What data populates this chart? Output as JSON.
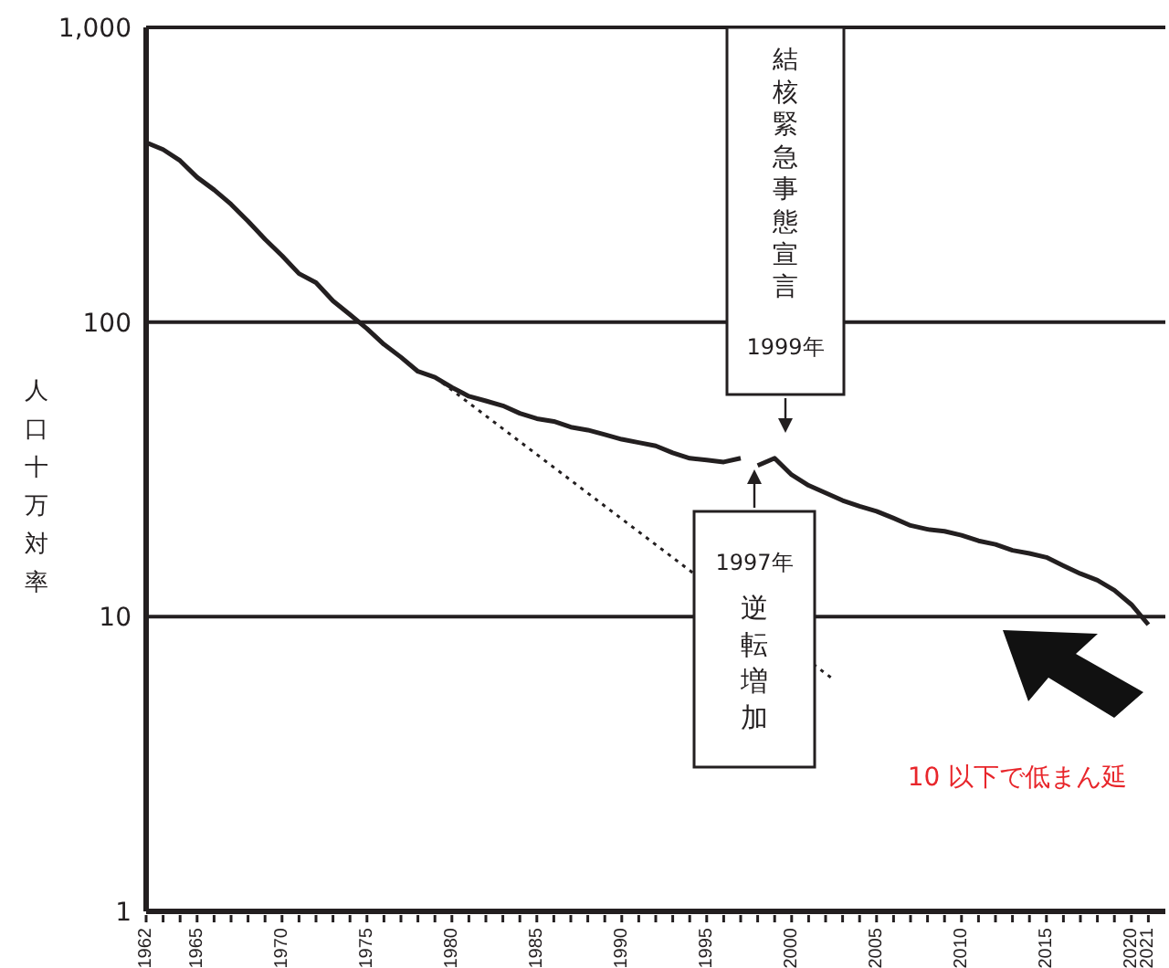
{
  "chart_data": {
    "type": "line",
    "ylabel": "人口十万対率",
    "log": "y",
    "grid": "y",
    "ylim": [
      1,
      1000
    ],
    "yticks": [
      1,
      10,
      100,
      {
        "value": 1000,
        "label": "1,000"
      }
    ],
    "xlim": [
      1962,
      2022
    ],
    "xticks": [
      1962,
      {
        "value": 1963,
        "label": null
      },
      {
        "value": 1964,
        "label": null
      },
      1965,
      {
        "value": 1966,
        "label": null
      },
      {
        "value": 1967,
        "label": null
      },
      {
        "value": 1968,
        "label": null
      },
      {
        "value": 1969,
        "label": null
      },
      1970,
      {
        "value": 1971,
        "label": null
      },
      {
        "value": 1972,
        "label": null
      },
      {
        "value": 1973,
        "label": null
      },
      {
        "value": 1974,
        "label": null
      },
      1975,
      {
        "value": 1976,
        "label": null
      },
      {
        "value": 1977,
        "label": null
      },
      {
        "value": 1978,
        "label": null
      },
      {
        "value": 1979,
        "label": null
      },
      1980,
      {
        "value": 1981,
        "label": null
      },
      {
        "value": 1982,
        "label": null
      },
      {
        "value": 1983,
        "label": null
      },
      {
        "value": 1984,
        "label": null
      },
      1985,
      {
        "value": 1986,
        "label": null
      },
      {
        "value": 1987,
        "label": null
      },
      {
        "value": 1988,
        "label": null
      },
      {
        "value": 1989,
        "label": null
      },
      1990,
      {
        "value": 1991,
        "label": null
      },
      {
        "value": 1992,
        "label": null
      },
      {
        "value": 1993,
        "label": null
      },
      {
        "value": 1994,
        "label": null
      },
      1995,
      {
        "value": 1996,
        "label": null
      },
      {
        "value": 1997,
        "label": null
      },
      {
        "value": 1998,
        "label": null
      },
      {
        "value": 1999,
        "label": null
      },
      2000,
      {
        "value": 2001,
        "label": null
      },
      {
        "value": 2002,
        "label": null
      },
      {
        "value": 2003,
        "label": null
      },
      {
        "value": 2004,
        "label": null
      },
      2005,
      {
        "value": 2006,
        "label": null
      },
      {
        "value": 2007,
        "label": null
      },
      {
        "value": 2008,
        "label": null
      },
      {
        "value": 2009,
        "label": null
      },
      2010,
      {
        "value": 2011,
        "label": null
      },
      {
        "value": 2012,
        "label": null
      },
      {
        "value": 2013,
        "label": null
      },
      {
        "value": 2014,
        "label": null
      },
      2015,
      {
        "value": 2016,
        "label": null
      },
      {
        "value": 2017,
        "label": null
      },
      {
        "value": 2018,
        "label": null
      },
      {
        "value": 2019,
        "label": null
      },
      2020,
      2021
    ],
    "series": [
      {
        "color": "#231f20",
        "line_style": "solid",
        "x": [
          1962,
          1963,
          1964,
          1965,
          1966,
          1967,
          1968,
          1969,
          1970,
          1971,
          1972,
          1973,
          1974,
          1975,
          1976,
          1977,
          1978,
          1979,
          1980,
          1981,
          1982,
          1983,
          1984,
          1985,
          1986,
          1987,
          1988,
          1989,
          1990,
          1991,
          1992,
          1993,
          1994,
          1995,
          1996,
          1997
        ],
        "values": [
          407,
          385,
          353,
          310,
          281,
          251,
          220,
          191,
          168,
          146,
          136,
          118,
          106,
          95,
          84,
          76,
          68,
          65,
          60,
          56,
          54,
          52,
          49,
          47,
          46,
          44,
          43,
          41.5,
          40,
          39,
          38,
          36,
          34.5,
          34,
          33.5,
          34.5
        ]
      },
      {
        "color": "#231f20",
        "line_style": "solid",
        "x": [
          1998,
          1999,
          2000,
          2001,
          2002,
          2003,
          2004,
          2005,
          2006,
          2007,
          2008,
          2009,
          2010,
          2011,
          2012,
          2013,
          2014,
          2015,
          2016,
          2017,
          2018,
          2019,
          2020,
          2021
        ],
        "values": [
          32.6,
          34.5,
          30.3,
          27.9,
          26.3,
          24.8,
          23.7,
          22.8,
          21.6,
          20.4,
          19.8,
          19.5,
          18.9,
          18.1,
          17.6,
          16.8,
          16.4,
          15.9,
          14.9,
          14,
          13.3,
          12.3,
          11,
          9.4
        ]
      },
      {
        "color": "#231f20",
        "line_style": "dotted",
        "x": [
          1979,
          2002.5
        ],
        "values": [
          65,
          6.1
        ]
      }
    ],
    "annotations": [
      "結核緊急事態宣言",
      "1999年",
      "1997年",
      "逆転増加",
      "10 以下で低まん延"
    ]
  }
}
